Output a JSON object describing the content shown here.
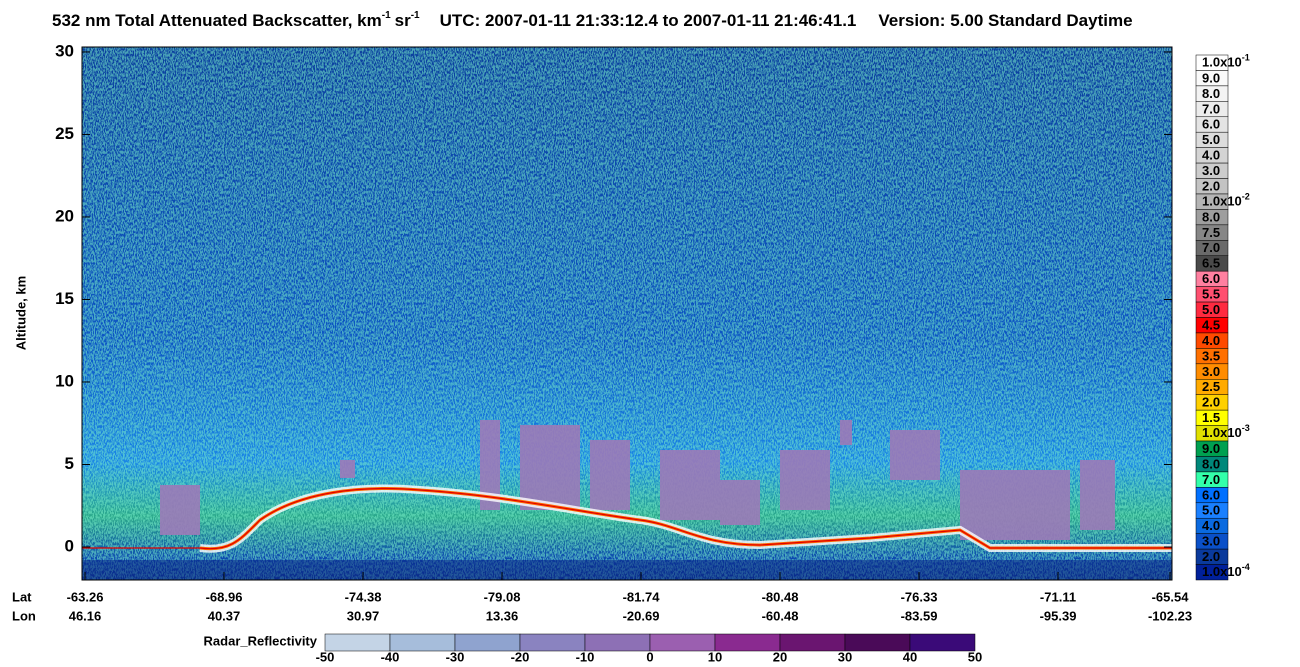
{
  "chart_data": {
    "type": "curtain",
    "title": {
      "main": "532 nm Total Attenuated Backscatter, km",
      "sup1": "-1",
      "unit2": "sr",
      "sup2": "-1",
      "utc": "UTC:  2007-01-11 21:33:12.4  to  2007-01-11 21:46:41.1",
      "version": "Version: 5.00  Standard  Daytime"
    },
    "y_label": "Altitude, km",
    "ylim": [
      -2,
      30.3
    ],
    "yticks": [
      0,
      5,
      10,
      15,
      20,
      25,
      30
    ],
    "x_row_labels": [
      "Lat",
      "Lon"
    ],
    "lat": [
      "-63.26",
      "-68.96",
      "-74.38",
      "-79.08",
      "-81.74",
      "-80.48",
      "-76.33",
      "-71.11",
      "-65.54"
    ],
    "lon": [
      "46.16",
      "40.37",
      "30.97",
      "13.36",
      "-20.69",
      "-60.48",
      "-83.59",
      "-95.39",
      "-102.23"
    ],
    "colorbar": {
      "labels": [
        {
          "base": "1.0x10",
          "sup": "-1"
        },
        "9.0",
        "8.0",
        "7.0",
        "6.0",
        "5.0",
        "4.0",
        "3.0",
        "2.0",
        {
          "base": "1.0x10",
          "sup": "-2"
        },
        "8.0",
        "7.5",
        "7.0",
        "6.5",
        "6.0",
        "5.5",
        "5.0",
        "4.5",
        "4.0",
        "3.5",
        "3.0",
        "2.5",
        "2.0",
        "1.5",
        {
          "base": "1.0x10",
          "sup": "-3"
        },
        "9.0",
        "8.0",
        "7.0",
        "6.0",
        "5.0",
        "4.0",
        "3.0",
        "2.0",
        {
          "base": "1.0x10",
          "sup": "-4"
        }
      ],
      "colors": [
        "#ffffff",
        "#fafafa",
        "#f3f3f3",
        "#ececec",
        "#e4e4e4",
        "#dcdcdc",
        "#d4d4d4",
        "#cccccc",
        "#c3c3c3",
        "#b4b4b4",
        "#9e9e9e",
        "#868686",
        "#6a6a6a",
        "#4a4a4a",
        "#ff80a0",
        "#ff5070",
        "#ff2a40",
        "#ff0000",
        "#ff4a00",
        "#ff7000",
        "#ff8c00",
        "#ffaa00",
        "#ffd000",
        "#ffff00",
        "#e0e000",
        "#00a050",
        "#00887a",
        "#33ffaa",
        "#0070ff",
        "#1a80ff",
        "#0a6ae0",
        "#0a50c8",
        "#0a3a9c",
        "#00209a"
      ]
    },
    "radar_colorbar": {
      "label": "Radar_Reflectivity",
      "ticks": [
        -50,
        -40,
        -30,
        -20,
        -10,
        0,
        10,
        20,
        30,
        40,
        50
      ],
      "colors": [
        "#c4d4e6",
        "#a6bddb",
        "#8fa3cf",
        "#8a83c0",
        "#8d70b5",
        "#9b5fb0",
        "#8a2a90",
        "#6a1570",
        "#4a0a58",
        "#3a0a78"
      ]
    }
  }
}
